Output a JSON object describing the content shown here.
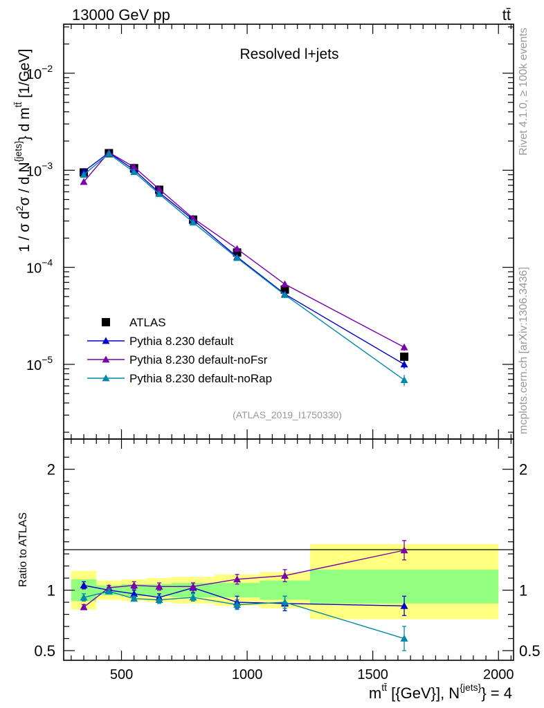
{
  "header": {
    "energy_label": "13000 GeV pp",
    "process_label": "tt̄"
  },
  "side_labels": {
    "rivet": "Rivet 4.1.0, ≥ 100k events",
    "mcplots": "mcplots.cern.ch [arXiv:1306.3436]"
  },
  "chart_data": [
    {
      "type": "scatter",
      "panel": "main",
      "title": "Resolved l+jets",
      "analysis_id": "(ATLAS_2019_I1750330)",
      "ylabel": "1 / σ d²σ / d N^{jets} d m^{tt̄} [1/GeV]",
      "ylabel_parts": {
        "a": "1 / σ d",
        "a_sup": "2",
        "b": "σ / d N",
        "b_sup": "{jets}",
        "c": "} d m",
        "c_sup": "tt̄",
        "d": " [1/GeV]"
      },
      "yscale": "log",
      "ylim": [
        1.7e-06,
        0.032
      ],
      "yticks": [
        {
          "value": 1e-05,
          "base": "10",
          "exp": "−5"
        },
        {
          "value": 0.0001,
          "base": "10",
          "exp": "−4"
        },
        {
          "value": 0.001,
          "base": "10",
          "exp": "−3"
        },
        {
          "value": 0.01,
          "base": "10",
          "exp": "−2"
        }
      ],
      "xlim": [
        270,
        2060
      ],
      "legend_position": "center-left",
      "series": [
        {
          "name": "ATLAS",
          "marker": "square",
          "color": "#000000",
          "x": [
            350,
            450,
            550,
            650,
            785,
            960,
            1150,
            1625
          ],
          "y": [
            0.00095,
            0.0015,
            0.00105,
            0.00063,
            0.00031,
            0.000142,
            5.9e-05,
            1.2e-05
          ]
        },
        {
          "name": "Pythia 8.230 default",
          "marker": "triangle",
          "color": "#0000cc",
          "x": [
            350,
            450,
            550,
            650,
            785,
            960,
            1150,
            1625
          ],
          "y": [
            0.00097,
            0.00152,
            0.00101,
            0.00059,
            0.00031,
            0.000128,
            5.3e-05,
            1e-05
          ],
          "err": [
            4e-05,
            5e-05,
            4e-05,
            2e-05,
            1e-05,
            6e-06,
            3e-06,
            1e-06
          ]
        },
        {
          "name": "Pythia 8.230 default-noFsr",
          "marker": "triangle",
          "color": "#7700aa",
          "x": [
            350,
            450,
            550,
            650,
            785,
            960,
            1150,
            1625
          ],
          "y": [
            0.00076,
            0.00153,
            0.00108,
            0.00064,
            0.00032,
            0.000155,
            6.7e-05,
            1.5e-05
          ],
          "err": [
            4e-05,
            5e-05,
            4e-05,
            2e-05,
            1e-05,
            7e-06,
            4e-06,
            1.2e-06
          ]
        },
        {
          "name": "Pythia 8.230 default-noRap",
          "marker": "triangle",
          "color": "#0088aa",
          "x": [
            350,
            450,
            550,
            650,
            785,
            960,
            1150,
            1625
          ],
          "y": [
            0.0009,
            0.00148,
            0.00096,
            0.00057,
            0.00029,
            0.000125,
            5.2e-05,
            6.9e-06
          ],
          "err": [
            4e-05,
            5e-05,
            4e-05,
            2e-05,
            1e-05,
            6e-06,
            3e-06,
            9e-07
          ]
        }
      ]
    },
    {
      "type": "scatter",
      "panel": "ratio",
      "ylabel": "Ratio to ATLAS",
      "ylim": [
        0.42,
        2.25
      ],
      "yticks": [
        0.5,
        1,
        2
      ],
      "ytick_labels": [
        "0.5",
        "1",
        "2"
      ],
      "xlabel": "m^{tt̄} [{GeV}], N^{jets} = 4",
      "xlabel_parts": {
        "a": "m",
        "a_sup": "tt̄",
        "b": " [{GeV}], N",
        "b_sup": "{jets}",
        "c": "} = 4"
      },
      "xlim": [
        270,
        2060
      ],
      "xticks": [
        500,
        1000,
        1500,
        2000
      ],
      "xtick_labels": [
        "500",
        "1000",
        "1500",
        "2000"
      ],
      "uncertainty_bands": [
        {
          "x_lo": 300,
          "x_hi": 400,
          "total": [
            0.84,
            1.16
          ],
          "stat": [
            0.91,
            1.09
          ]
        },
        {
          "x_lo": 400,
          "x_hi": 500,
          "total": [
            0.92,
            1.08
          ],
          "stat": [
            0.96,
            1.04
          ]
        },
        {
          "x_lo": 500,
          "x_hi": 600,
          "total": [
            0.91,
            1.09
          ],
          "stat": [
            0.95,
            1.05
          ]
        },
        {
          "x_lo": 600,
          "x_hi": 700,
          "total": [
            0.9,
            1.1
          ],
          "stat": [
            0.95,
            1.05
          ]
        },
        {
          "x_lo": 700,
          "x_hi": 870,
          "total": [
            0.89,
            1.11
          ],
          "stat": [
            0.94,
            1.06
          ]
        },
        {
          "x_lo": 870,
          "x_hi": 1050,
          "total": [
            0.87,
            1.13
          ],
          "stat": [
            0.94,
            1.06
          ]
        },
        {
          "x_lo": 1050,
          "x_hi": 1250,
          "total": [
            0.85,
            1.15
          ],
          "stat": [
            0.92,
            1.08
          ]
        },
        {
          "x_lo": 1250,
          "x_hi": 2000,
          "total": [
            0.76,
            1.38
          ],
          "stat": [
            0.89,
            1.17
          ]
        }
      ],
      "series": [
        {
          "name": "Pythia 8.230 default",
          "color": "#0000cc",
          "x": [
            350,
            450,
            550,
            650,
            785,
            960,
            1150,
            1625
          ],
          "y": [
            1.04,
            1.0,
            0.97,
            0.94,
            1.02,
            0.9,
            0.89,
            0.87
          ],
          "err": [
            0.03,
            0.02,
            0.03,
            0.03,
            0.04,
            0.05,
            0.06,
            0.08
          ]
        },
        {
          "name": "Pythia 8.230 default-noFsr",
          "color": "#7700aa",
          "x": [
            350,
            450,
            550,
            650,
            785,
            960,
            1150,
            1625
          ],
          "y": [
            0.86,
            1.02,
            1.04,
            1.03,
            1.03,
            1.09,
            1.12,
            1.33
          ],
          "err": [
            0.02,
            0.02,
            0.03,
            0.03,
            0.03,
            0.04,
            0.05,
            0.08
          ]
        },
        {
          "name": "Pythia 8.230 default-noRap",
          "color": "#0088aa",
          "x": [
            350,
            450,
            550,
            650,
            785,
            960,
            1150,
            1625
          ],
          "y": [
            0.94,
            0.99,
            0.93,
            0.92,
            0.94,
            0.88,
            0.9,
            0.6
          ],
          "err": [
            0.03,
            0.02,
            0.02,
            0.03,
            0.03,
            0.04,
            0.05,
            0.1
          ]
        }
      ]
    }
  ]
}
